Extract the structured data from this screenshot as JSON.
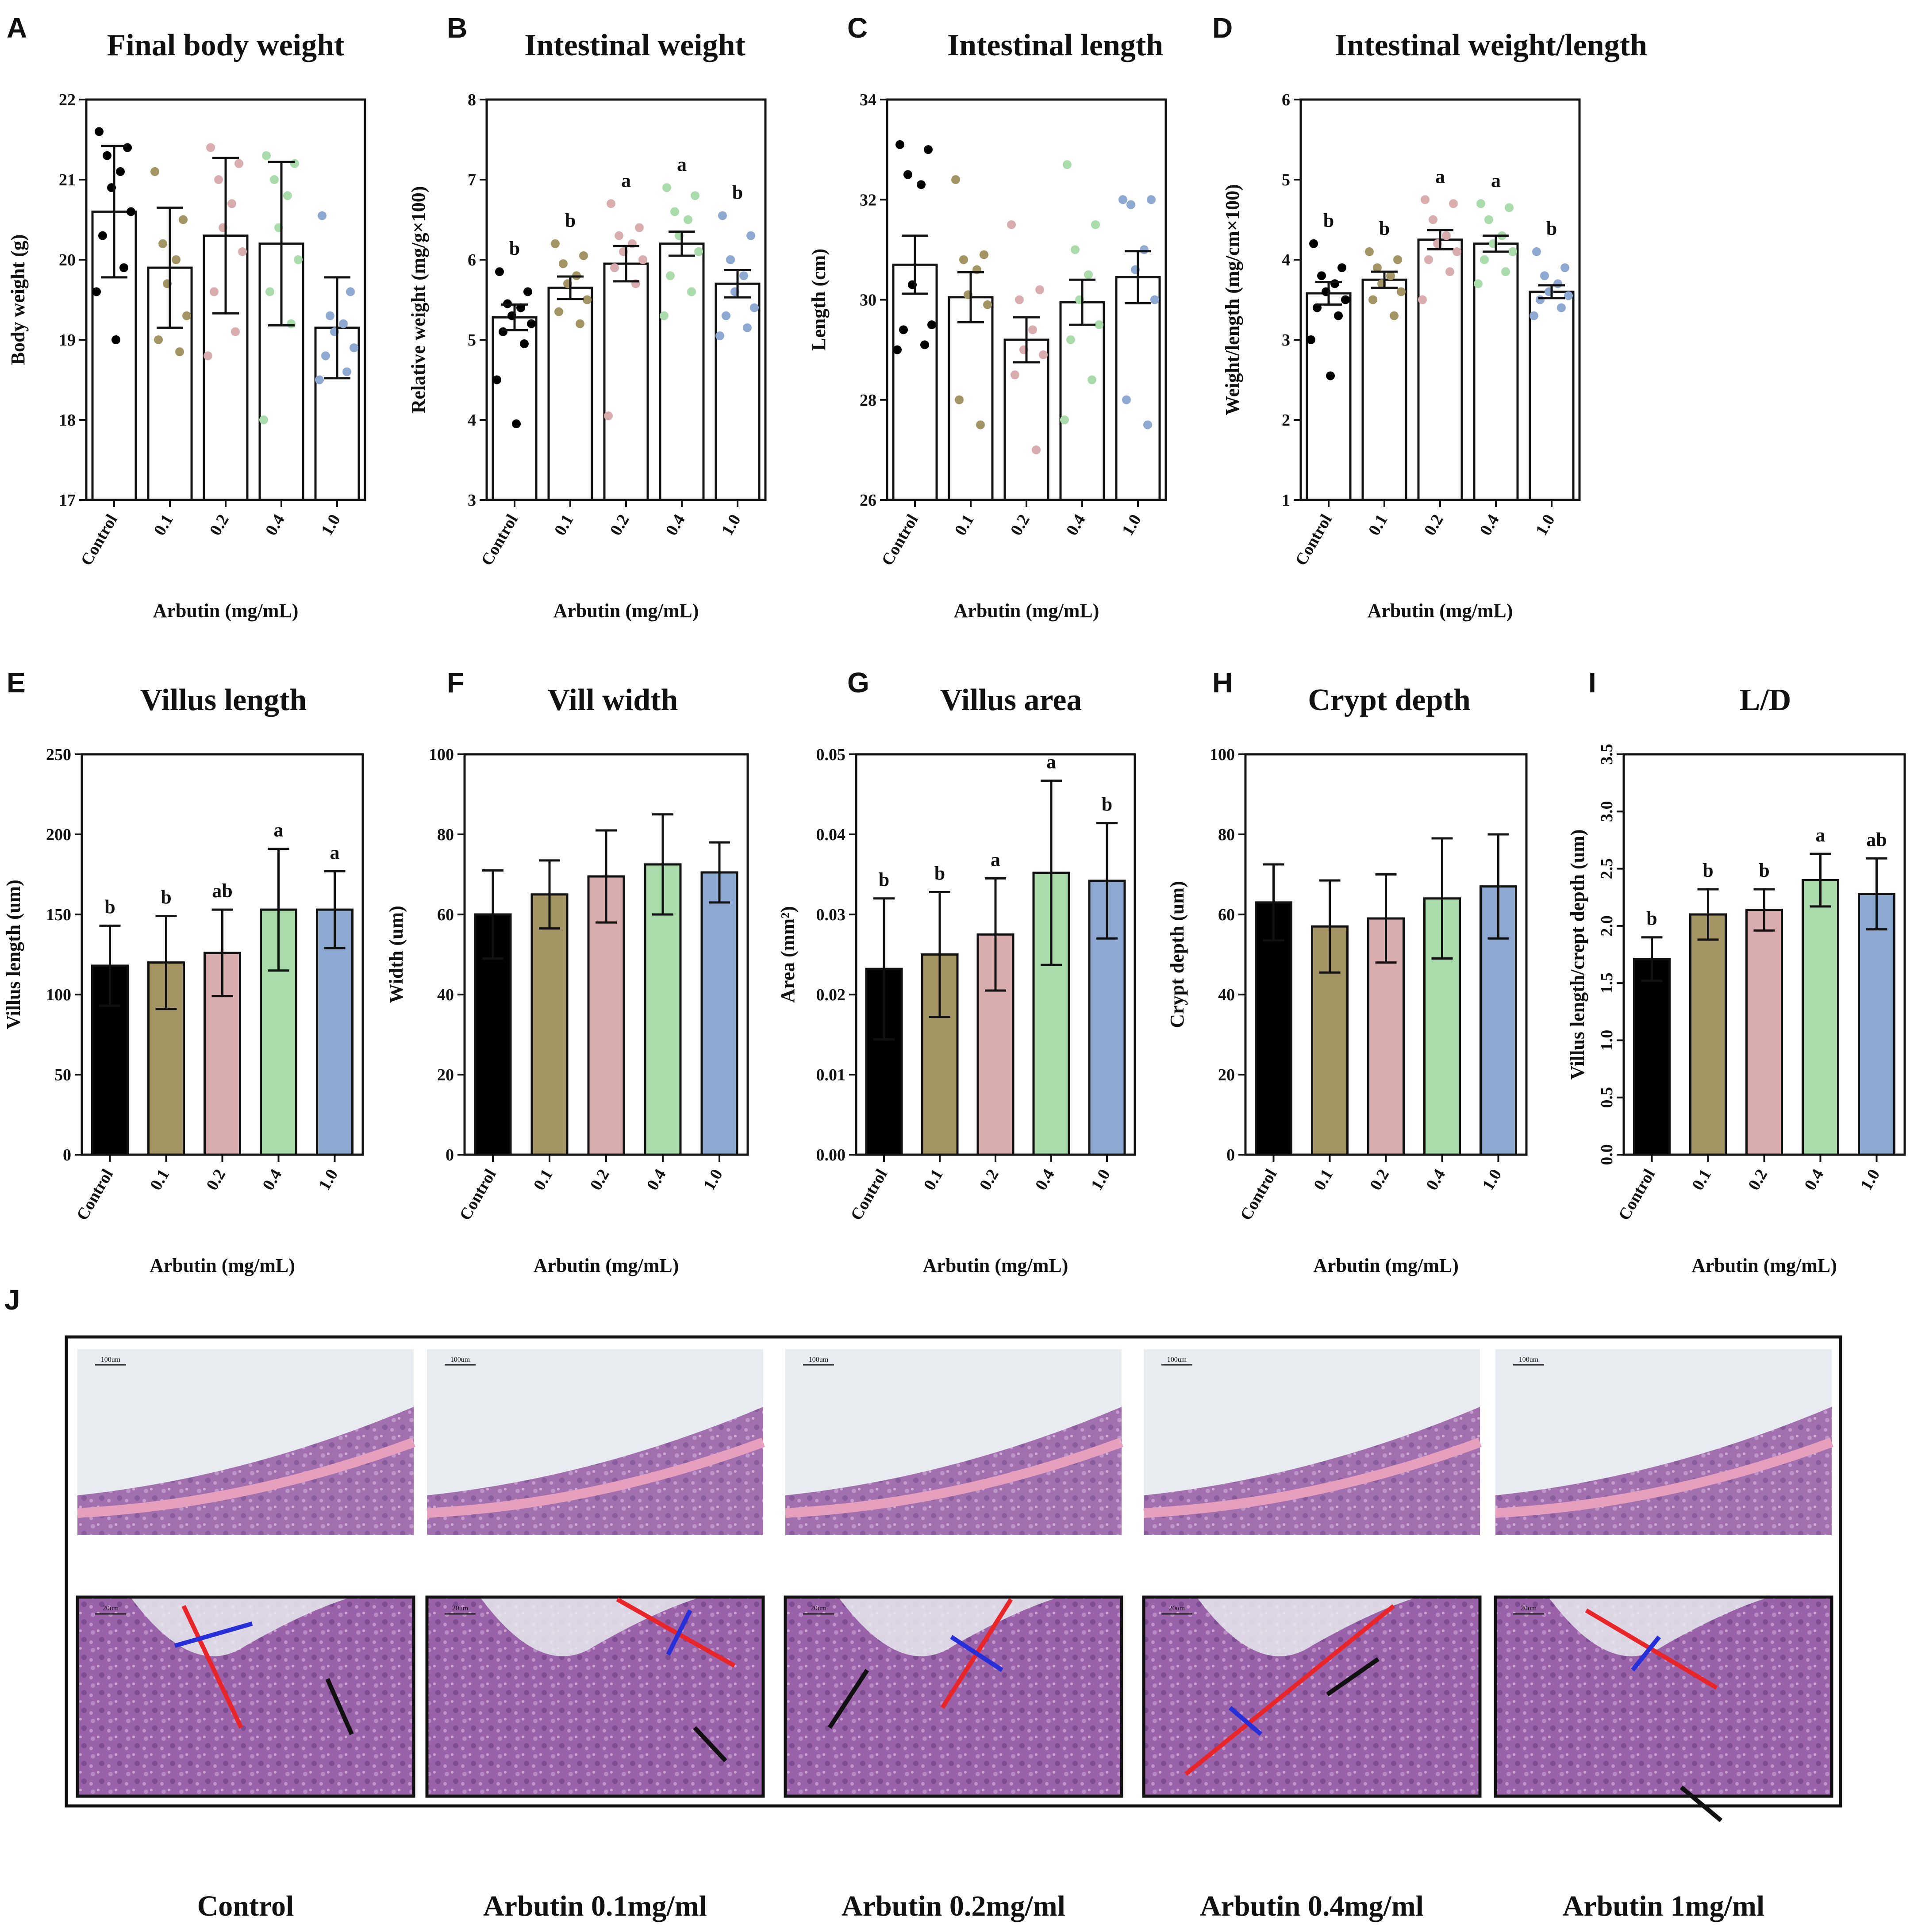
{
  "chart_data": [
    {
      "panel": "A",
      "type": "bar",
      "style": "open",
      "title": "Final body weight",
      "xlabel": "Arbutin (mg/mL)",
      "ylabel": "Body weight (g)",
      "categories": [
        "Control",
        "0.1",
        "0.2",
        "0.4",
        "1.0"
      ],
      "ylim": [
        17,
        22
      ],
      "yticks": [
        "17",
        "18",
        "19",
        "20",
        "21",
        "22"
      ],
      "values": [
        20.6,
        19.9,
        20.3,
        20.2,
        19.15
      ],
      "errors": [
        0.82,
        0.75,
        0.97,
        1.02,
        0.63
      ],
      "letters": [
        "",
        "",
        "",
        "",
        ""
      ],
      "points": [
        [
          21.6,
          21.4,
          21.3,
          21.1,
          20.9,
          20.6,
          20.3,
          19.9,
          19.6,
          19.0
        ],
        [
          21.1,
          20.5,
          20.2,
          20.0,
          19.7,
          19.3,
          19.0,
          18.85
        ],
        [
          21.4,
          21.2,
          21.0,
          20.7,
          20.4,
          20.1,
          19.6,
          19.1,
          18.8
        ],
        [
          21.3,
          21.2,
          21.0,
          20.8,
          20.4,
          20.0,
          19.6,
          19.2,
          18.0
        ],
        [
          20.55,
          19.6,
          19.3,
          19.2,
          19.1,
          18.9,
          18.8,
          18.6,
          18.5
        ]
      ]
    },
    {
      "panel": "B",
      "type": "bar",
      "style": "open",
      "title": "Intestinal weight",
      "xlabel": "Arbutin (mg/mL)",
      "ylabel": "Relative weight (mg/g×100)",
      "categories": [
        "Control",
        "0.1",
        "0.2",
        "0.4",
        "1.0"
      ],
      "ylim": [
        3,
        8
      ],
      "yticks": [
        "3",
        "4",
        "5",
        "6",
        "7",
        "8"
      ],
      "values": [
        5.28,
        5.65,
        5.95,
        6.2,
        5.7
      ],
      "errors": [
        0.16,
        0.14,
        0.22,
        0.15,
        0.17
      ],
      "letters": [
        "b",
        "b",
        "a",
        "a",
        "b"
      ],
      "points": [
        [
          5.85,
          5.6,
          5.45,
          5.4,
          5.3,
          5.2,
          5.1,
          4.95,
          4.5,
          3.95
        ],
        [
          6.2,
          6.05,
          5.95,
          5.8,
          5.7,
          5.5,
          5.35,
          5.2
        ],
        [
          6.7,
          6.4,
          6.3,
          6.2,
          6.1,
          6.0,
          5.9,
          5.7,
          4.05
        ],
        [
          6.9,
          6.8,
          6.6,
          6.5,
          6.3,
          6.1,
          5.8,
          5.6,
          5.3
        ],
        [
          6.55,
          6.3,
          6.0,
          5.8,
          5.6,
          5.4,
          5.3,
          5.15,
          5.05
        ]
      ]
    },
    {
      "panel": "C",
      "type": "bar",
      "style": "open",
      "title": "Intestinal length",
      "xlabel": "Arbutin (mg/mL)",
      "ylabel": "Length (cm)",
      "categories": [
        "Control",
        "0.1",
        "0.2",
        "0.4",
        "1.0"
      ],
      "ylim": [
        26,
        34
      ],
      "yticks": [
        "26",
        "28",
        "30",
        "32",
        "34"
      ],
      "values": [
        30.7,
        30.05,
        29.2,
        29.95,
        30.45
      ],
      "errors": [
        0.58,
        0.5,
        0.45,
        0.45,
        0.52
      ],
      "letters": [
        "",
        "",
        "",
        "",
        ""
      ],
      "points": [
        [
          33.1,
          33.0,
          32.5,
          32.3,
          30.3,
          29.5,
          29.4,
          29.1,
          29.0
        ],
        [
          32.4,
          30.9,
          30.8,
          30.6,
          30.1,
          29.9,
          28.0,
          27.5
        ],
        [
          31.5,
          30.2,
          30.0,
          29.4,
          29.0,
          28.9,
          28.5,
          27.0
        ],
        [
          32.7,
          31.5,
          31.0,
          30.5,
          30.0,
          29.5,
          29.2,
          28.4,
          27.6
        ],
        [
          32.0,
          32.0,
          31.9,
          31.0,
          30.6,
          30.0,
          28.0,
          27.5
        ]
      ]
    },
    {
      "panel": "D",
      "type": "bar",
      "style": "open",
      "title": "Intestinal weight/length",
      "xlabel": "Arbutin (mg/mL)",
      "ylabel": "Weight/length (mg/cm×100)",
      "categories": [
        "Control",
        "0.1",
        "0.2",
        "0.4",
        "1.0"
      ],
      "ylim": [
        1,
        6
      ],
      "yticks": [
        "1",
        "2",
        "3",
        "4",
        "5",
        "6"
      ],
      "values": [
        3.58,
        3.75,
        4.25,
        4.2,
        3.6
      ],
      "errors": [
        0.14,
        0.1,
        0.12,
        0.1,
        0.08
      ],
      "letters": [
        "b",
        "b",
        "a",
        "a",
        "b"
      ],
      "points": [
        [
          4.2,
          3.9,
          3.8,
          3.7,
          3.6,
          3.5,
          3.4,
          3.3,
          3.0,
          2.55
        ],
        [
          4.1,
          4.0,
          3.9,
          3.8,
          3.7,
          3.6,
          3.5,
          3.3
        ],
        [
          4.75,
          4.7,
          4.5,
          4.3,
          4.2,
          4.1,
          4.0,
          3.85,
          3.5
        ],
        [
          4.7,
          4.65,
          4.5,
          4.3,
          4.2,
          4.1,
          4.0,
          3.85,
          3.7
        ],
        [
          4.1,
          3.9,
          3.8,
          3.7,
          3.6,
          3.55,
          3.5,
          3.4,
          3.3
        ]
      ]
    },
    {
      "panel": "E",
      "type": "bar",
      "style": "filled",
      "title": "Villus length",
      "xlabel": "Arbutin (mg/mL)",
      "ylabel": "Villus length (um)",
      "categories": [
        "Control",
        "0.1",
        "0.2",
        "0.4",
        "1.0"
      ],
      "ylim": [
        0,
        250
      ],
      "yticks": [
        "0",
        "50",
        "100",
        "150",
        "200",
        "250"
      ],
      "values": [
        118,
        120,
        126,
        153,
        153
      ],
      "errors": [
        25,
        29,
        27,
        38,
        24
      ],
      "letters": [
        "b",
        "b",
        "ab",
        "a",
        "a"
      ]
    },
    {
      "panel": "F",
      "type": "bar",
      "style": "filled",
      "title": "Vill width",
      "xlabel": "Arbutin (mg/mL)",
      "ylabel": "Width (um)",
      "categories": [
        "Control",
        "0.1",
        "0.2",
        "0.4",
        "1.0"
      ],
      "ylim": [
        0,
        100
      ],
      "yticks": [
        "0",
        "20",
        "40",
        "60",
        "80",
        "100"
      ],
      "values": [
        60,
        65,
        69.5,
        72.5,
        70.5
      ],
      "errors": [
        11,
        8.5,
        11.5,
        12.5,
        7.5
      ],
      "letters": [
        "",
        "",
        "",
        "",
        ""
      ]
    },
    {
      "panel": "G",
      "type": "bar",
      "style": "filled",
      "title": "Villus area",
      "xlabel": "Arbutin (mg/mL)",
      "ylabel": "Area (mm²)",
      "categories": [
        "Control",
        "0.1",
        "0.2",
        "0.4",
        "1.0"
      ],
      "ylim": [
        0,
        0.05
      ],
      "yticks": [
        "0.00",
        "0.01",
        "0.02",
        "0.03",
        "0.04",
        "0.05"
      ],
      "values": [
        0.0232,
        0.025,
        0.0275,
        0.0352,
        0.0342
      ],
      "errors": [
        0.0088,
        0.0078,
        0.007,
        0.0115,
        0.0072
      ],
      "letters": [
        "b",
        "b",
        "a",
        "a",
        "b"
      ]
    },
    {
      "panel": "H",
      "type": "bar",
      "style": "filled",
      "title": "Crypt depth",
      "xlabel": "Arbutin (mg/mL)",
      "ylabel": "Crypt depth (um)",
      "categories": [
        "Control",
        "0.1",
        "0.2",
        "0.4",
        "1.0"
      ],
      "ylim": [
        0,
        100
      ],
      "yticks": [
        "0",
        "20",
        "40",
        "60",
        "80",
        "100"
      ],
      "values": [
        63,
        57,
        59,
        64,
        67
      ],
      "errors": [
        9.5,
        11.5,
        11,
        15,
        13
      ],
      "letters": [
        "",
        "",
        "",
        "",
        ""
      ]
    },
    {
      "panel": "I",
      "type": "bar",
      "style": "filled",
      "title": "L/D",
      "xlabel": "Arbutin (mg/mL)",
      "ylabel": "Villus length/crept depth (um)",
      "categories": [
        "Control",
        "0.1",
        "0.2",
        "0.4",
        "1.0"
      ],
      "ylim": [
        0,
        3.5
      ],
      "yticks": [
        "0.0",
        "0.5",
        "1.0",
        "1.5",
        "2.0",
        "2.5",
        "3.0",
        "3.5"
      ],
      "yticks_rotated": true,
      "values": [
        1.71,
        2.1,
        2.14,
        2.4,
        2.28
      ],
      "errors": [
        0.19,
        0.22,
        0.18,
        0.23,
        0.31
      ],
      "letters": [
        "b",
        "b",
        "b",
        "a",
        "ab"
      ]
    }
  ],
  "colors": {
    "groups": [
      "#000000",
      "#a39563",
      "#d9adad",
      "#a9dcaa",
      "#8ea9d1"
    ],
    "villus_length_line": "#e8262a",
    "villus_width_line": "#2730d8",
    "crypt_depth_line": "#111111",
    "tissue": "#a66cb0",
    "background_slide": "#e8ebef"
  },
  "panel_j": {
    "letter": "J",
    "scale_bar_top": "100um",
    "scale_bar_bottom": "20um",
    "groups": [
      "Control",
      "Arbutin 0.1mg/ml",
      "Arbutin 0.2mg/ml",
      "Arbutin 0.4mg/ml",
      "Arbutin 1mg/ml"
    ]
  }
}
